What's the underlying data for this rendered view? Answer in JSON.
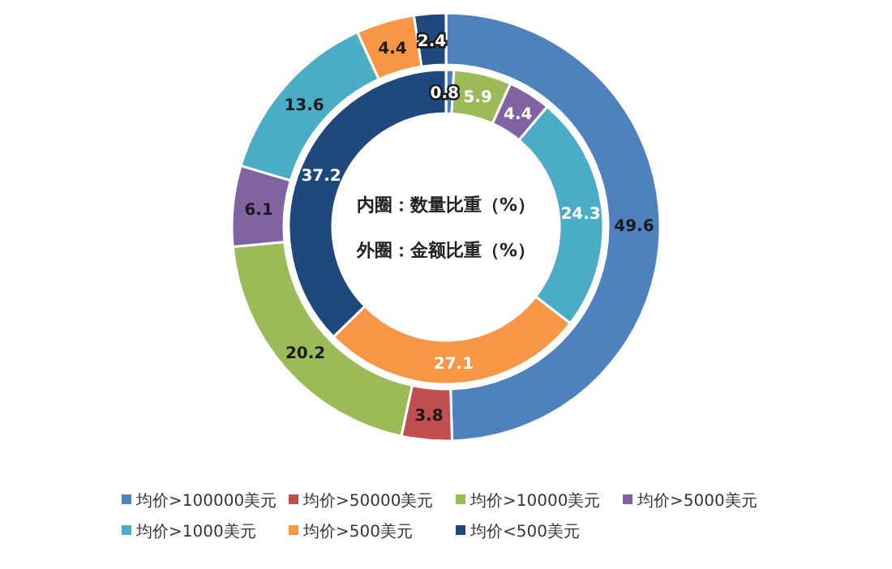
{
  "chart_data": {
    "type": "donut",
    "categories": [
      "均价>100000美元",
      "均价>50000美元",
      "均价>10000美元",
      "均价>5000美元",
      "均价>1000美元",
      "均价>500美元",
      "均价<500美元"
    ],
    "colors": [
      "#4f81bd",
      "#c0504d",
      "#9bbb59",
      "#8064a2",
      "#4bacc6",
      "#f79646",
      "#1f497d"
    ],
    "series": [
      {
        "values": [
          0.8,
          null,
          5.9,
          4.4,
          24.3,
          27.1,
          37.2
        ]
      },
      {
        "values": [
          49.6,
          3.8,
          20.2,
          6.1,
          13.6,
          4.4,
          2.4
        ]
      }
    ],
    "data_labels": true,
    "annotations": [
      "内圈：数量比重（%）",
      "外圈：金额比重（%）"
    ],
    "legend": "bottom"
  }
}
